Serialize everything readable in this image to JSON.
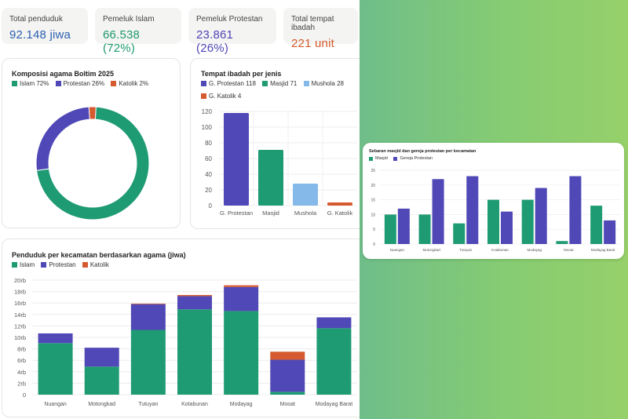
{
  "kpis": [
    {
      "label": "Total penduduk",
      "value": "92.148 jiwa",
      "color": "#2c5fb0"
    },
    {
      "label": "Pemeluk Islam",
      "value": "66.538 (72%)",
      "color": "#1f9a6e"
    },
    {
      "label": "Pemeluk Protestan",
      "value": "23.861 (26%)",
      "color": "#4f45b5"
    },
    {
      "label": "Total tempat ibadah",
      "value": "221 unit",
      "color": "#d35b2c"
    }
  ],
  "colors": {
    "islam": "#1f9b74",
    "protestan": "#5048b6",
    "katolik": "#d65a30",
    "mushola": "#85b9ea"
  },
  "donut": {
    "title": "Komposisi agama Boltim 2025",
    "legend": [
      "Islam 72%",
      "Protestan 26%",
      "Katolik 2%"
    ],
    "chart_data": {
      "type": "pie",
      "categories": [
        "Islam",
        "Protestan",
        "Katolik"
      ],
      "values": [
        72,
        26,
        2
      ]
    }
  },
  "ibadah": {
    "title": "Tempat ibadah per jenis",
    "legend": [
      "G. Protestan 118",
      "Masjid 71",
      "Mushola 28",
      "G. Katolik 4"
    ],
    "chart_data": {
      "type": "bar",
      "categories": [
        "G. Protestan",
        "Masjid",
        "Mushola",
        "G. Katolik"
      ],
      "values": [
        118,
        71,
        28,
        4
      ],
      "ylim": [
        0,
        120
      ],
      "yticks": [
        "0",
        "20",
        "40",
        "60",
        "80",
        "100",
        "120"
      ]
    }
  },
  "penduduk": {
    "title": "Penduduk per kecamatan berdasarkan agama (jiwa)",
    "legend": [
      "Islam",
      "Protestan",
      "Katolik"
    ],
    "chart_data": {
      "type": "bar",
      "categories": [
        "Nuangan",
        "Motongkad",
        "Tutuyan",
        "Kotabunan",
        "Modayag",
        "Mooat",
        "Modayag Barat"
      ],
      "series": [
        {
          "name": "Islam",
          "values": [
            9000,
            4900,
            11300,
            14900,
            14600,
            500,
            11600
          ]
        },
        {
          "name": "Protestan",
          "values": [
            1700,
            3300,
            4500,
            2300,
            4200,
            5600,
            1900
          ]
        },
        {
          "name": "Katolik",
          "values": [
            0,
            0,
            100,
            200,
            300,
            1400,
            0
          ]
        }
      ],
      "ylim": [
        0,
        20000
      ],
      "yticks": [
        "0",
        "2rb",
        "4rb",
        "6rb",
        "8rb",
        "10rb",
        "12rb",
        "14rb",
        "16rb",
        "18rb",
        "20rb"
      ]
    }
  },
  "sebaran": {
    "title": "Sebaran masjid dan gereja protestan per kecamatan",
    "legend": [
      "Masjid",
      "Gereja Protestan"
    ],
    "chart_data": {
      "type": "bar",
      "categories": [
        "Nuangan",
        "Motongkad",
        "Tutuyan",
        "Kotabunan",
        "Modayag",
        "Mooat",
        "Modayag Barat"
      ],
      "series": [
        {
          "name": "Masjid",
          "values": [
            10,
            10,
            7,
            15,
            15,
            1,
            13
          ]
        },
        {
          "name": "Gereja Protestan",
          "values": [
            12,
            22,
            23,
            11,
            19,
            23,
            8
          ]
        }
      ],
      "ylim": [
        0,
        25
      ],
      "yticks": [
        "0",
        "5",
        "10",
        "15",
        "20",
        "25"
      ]
    }
  }
}
